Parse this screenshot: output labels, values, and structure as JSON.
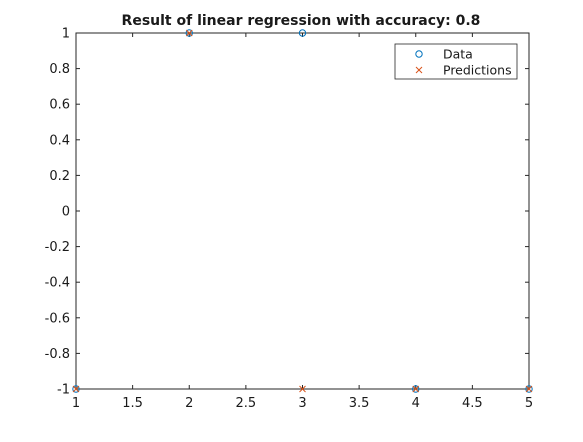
{
  "chart_data": {
    "type": "scatter",
    "title": "Result of linear regression with accuracy: 0.8",
    "xlabel": "",
    "ylabel": "",
    "xlim": [
      1,
      5
    ],
    "ylim": [
      -1,
      1
    ],
    "x_ticks": [
      1,
      1.5,
      2,
      2.5,
      3,
      3.5,
      4,
      4.5,
      5
    ],
    "x_tick_labels": [
      "1",
      "1.5",
      "2",
      "2.5",
      "3",
      "3.5",
      "4",
      "4.5",
      "5"
    ],
    "y_ticks": [
      1,
      0.8,
      0.6,
      0.4,
      0.2,
      0,
      -0.2,
      -0.4,
      -0.6,
      -0.8,
      -1
    ],
    "y_tick_labels": [
      "1",
      "0.8",
      "0.6",
      "0.4",
      "0.2",
      "0",
      "-0.2",
      "-0.4",
      "-0.6",
      "-0.8",
      "-1"
    ],
    "grid": false,
    "legend_position": "top-right",
    "series": [
      {
        "name": "Data",
        "marker": "circle",
        "color": "#0072bd",
        "x": [
          1,
          2,
          3,
          4,
          5
        ],
        "y": [
          -1,
          1,
          1,
          -1,
          -1
        ]
      },
      {
        "name": "Predictions",
        "marker": "x",
        "color": "#d95319",
        "x": [
          1,
          2,
          3,
          4,
          5
        ],
        "y": [
          -1,
          1,
          -1,
          -1,
          -1
        ]
      }
    ]
  }
}
